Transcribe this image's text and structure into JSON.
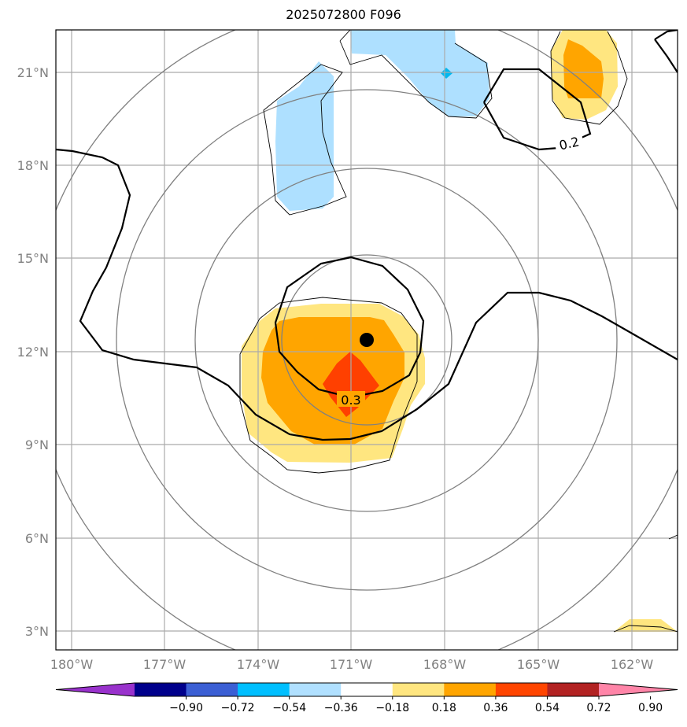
{
  "title": "2025072800 F096",
  "map": {
    "lat_labels": [
      "3°N",
      "6°N",
      "9°N",
      "12°N",
      "15°N",
      "18°N",
      "21°N"
    ],
    "lon_labels": [
      "180°W",
      "177°W",
      "174°W",
      "171°W",
      "168°W",
      "165°W",
      "162°W"
    ],
    "contour_labels": [
      "0.2",
      "0.3"
    ],
    "center_marker": {
      "lat": 12.4,
      "lon": -170.5
    },
    "colors": {
      "light_blue": "#aee0ff",
      "cyan": "#00b8f0",
      "yellow": "#ffe680",
      "orange": "#ffa500",
      "red_orange": "#ff4000"
    }
  },
  "colorbar": {
    "ticks": [
      "−0.90",
      "−0.72",
      "−0.54",
      "−0.36",
      "−0.18",
      "0.18",
      "0.36",
      "0.54",
      "0.72",
      "0.90"
    ],
    "colors": [
      "#9932cc",
      "#00008b",
      "#3b5fd4",
      "#00bfff",
      "#b0e0ff",
      "#ffffff",
      "#ffe680",
      "#ffa500",
      "#ff4500",
      "#b22222",
      "#ff85a8"
    ]
  }
}
